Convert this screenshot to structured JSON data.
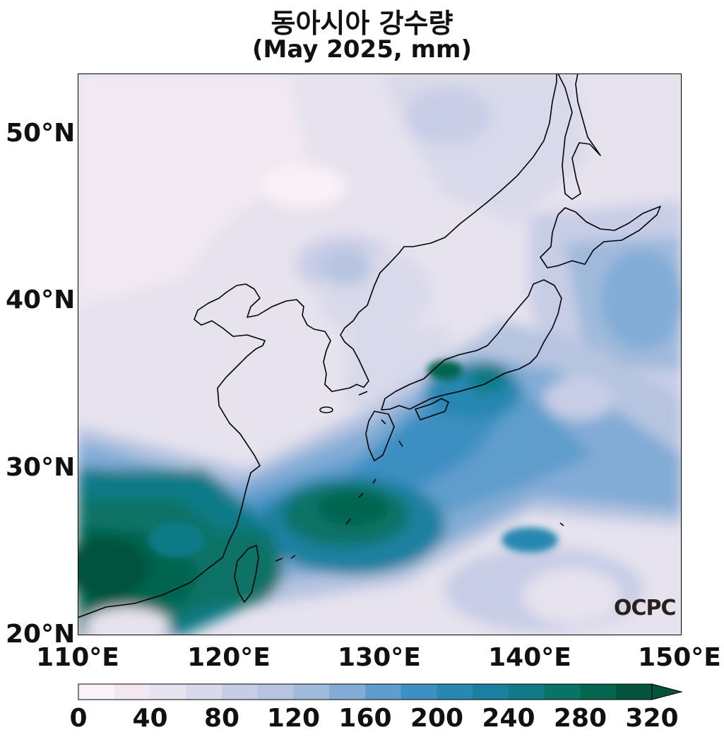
{
  "title": {
    "line1": "동아시아 강수량",
    "line2": "(May 2025, mm)"
  },
  "map": {
    "lat_ticks": [
      "50°N",
      "40°N",
      "30°N",
      "20°N"
    ],
    "lon_ticks": [
      "110°E",
      "120°E",
      "130°E",
      "140°E",
      "150°E"
    ],
    "lat_range": [
      20,
      53.5
    ],
    "lon_range": [
      110,
      150
    ],
    "variable": "precipitation",
    "unit": "mm"
  },
  "colorbar": {
    "labels": [
      "0",
      "40",
      "80",
      "120",
      "160",
      "200",
      "240",
      "280",
      "320"
    ],
    "levels": [
      0,
      20,
      40,
      60,
      80,
      100,
      120,
      140,
      160,
      180,
      200,
      220,
      240,
      260,
      280,
      300,
      320
    ],
    "colors": [
      "#fbf1f8",
      "#f1e8f2",
      "#e6e2ee",
      "#d8d9ea",
      "#c8cde6",
      "#b6c4e0",
      "#9fbadb",
      "#82acd5",
      "#5f9dcc",
      "#3e8fc2",
      "#2888b1",
      "#1b80a0",
      "#107a87",
      "#0a7366",
      "#06654f",
      "#03533d"
    ],
    "extend": "max"
  },
  "watermark": "OCPC"
}
